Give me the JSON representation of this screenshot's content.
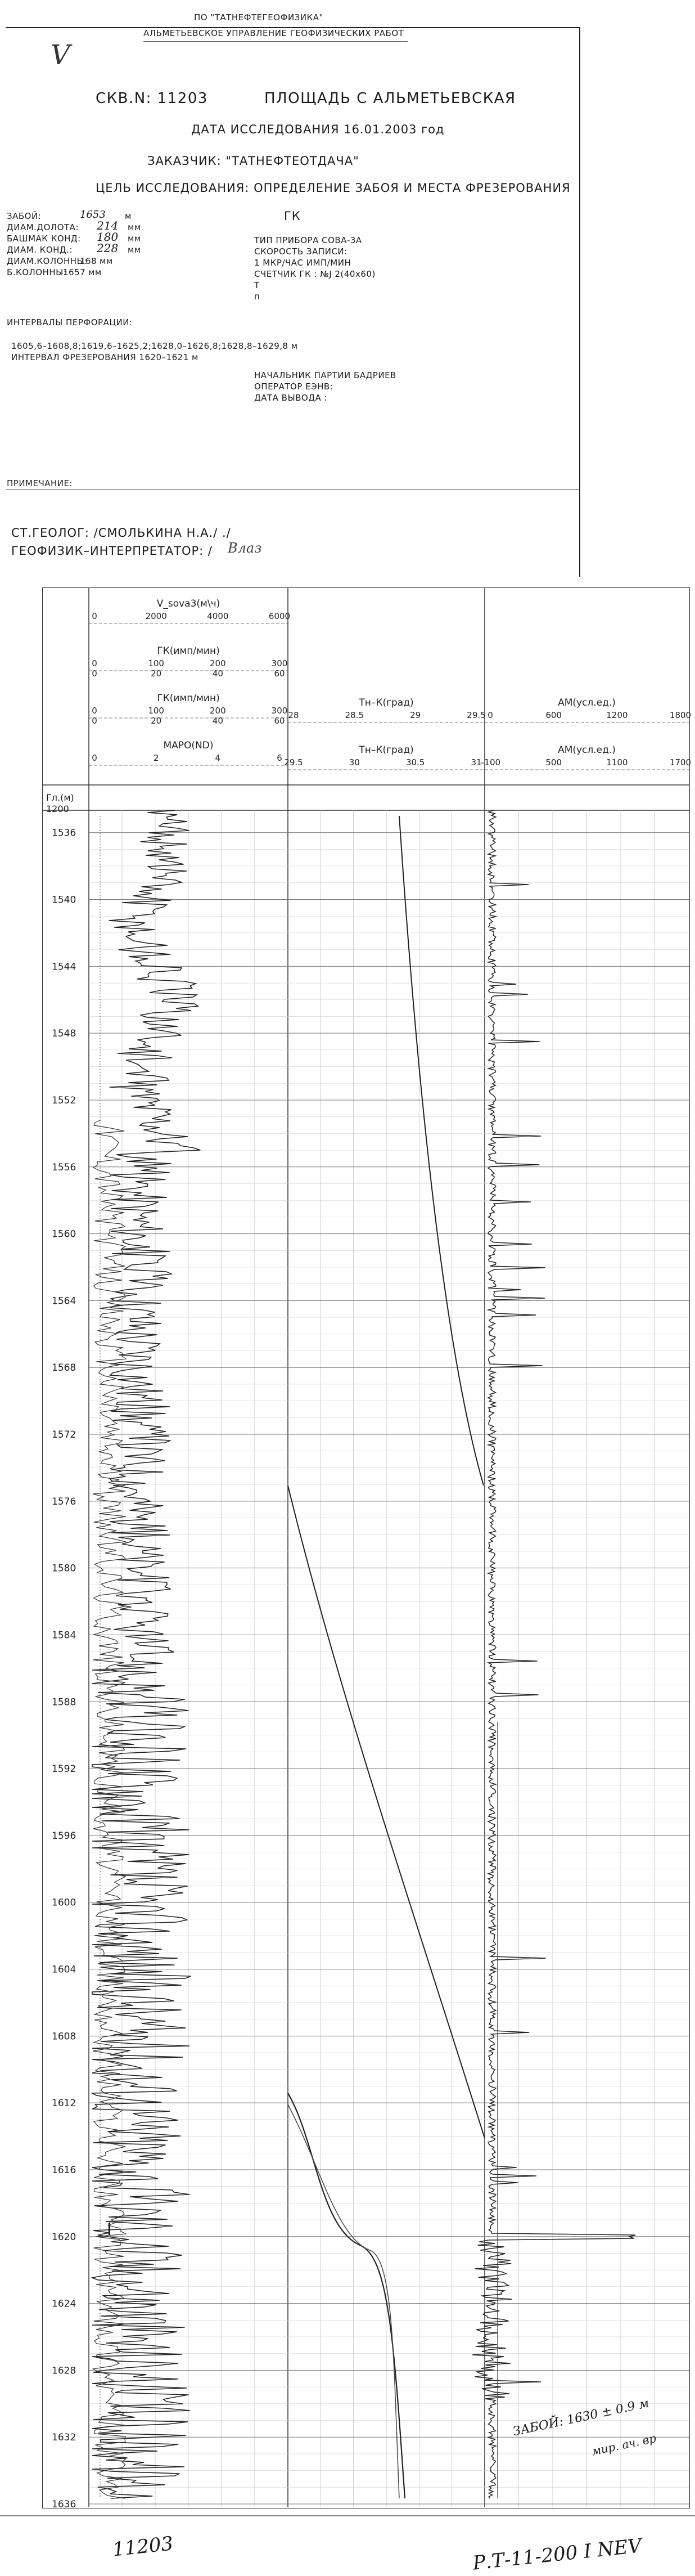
{
  "header": {
    "org_line1": "ПО   \"ТАТНЕФТЕГЕОФИЗИКА\"",
    "org_line2": "АЛЬМЕТЬЕВСКОЕ УПРАВЛЕНИЕ ГЕОФИЗИЧЕСКИХ РАБОТ",
    "well_no": "СКВ.N: 11203",
    "area": "ПЛОЩАДЬ С АЛЬМЕТЬЕВСКАЯ",
    "survey_date": "ДАТА ИССЛЕДОВАНИЯ 16.01.2003 год",
    "customer": "ЗАКАЗЧИК: \"ТАТНЕФТЕОТДАЧА\"",
    "purpose": "ЦЕЛЬ ИССЛЕДОВАНИЯ: ОПРЕДЕЛЕНИЕ ЗАБОЯ И МЕСТА ФРЕЗЕРОВАНИЯ",
    "left_params": [
      {
        "label": "ЗАБОЙ:",
        "value": "1653",
        "unit": "м"
      },
      {
        "label": "ДИАМ.ДОЛОТА:",
        "value": "214",
        "unit": "мм"
      },
      {
        "label": "БАШМАК КОНД:",
        "value": "180",
        "unit": "мм"
      },
      {
        "label": "ДИАМ. КОНД.:",
        "value": "228",
        "unit": "мм"
      },
      {
        "label": "ДИАМ.КОЛОННЫ:",
        "value": "168",
        "unit": "мм"
      },
      {
        "label": "Б.КОЛОННЫ:",
        "value": "1657",
        "unit": "мм"
      }
    ],
    "gk_label": "ГК",
    "right_params": [
      "ТИП ПРИБОРА СОВА-3А",
      "СКОРОСТЬ ЗАПИСИ:",
      "1 МКР/ЧАС          ИМП/МИН",
      "СЧЕТЧИК ГК     :  №J 2(40х60)",
      "Т",
      "п"
    ],
    "perf_title": "ИНТЕРВАЛЫ ПЕРФОРАЦИИ:",
    "perf_line1": "1605,6–1608,8;1619,6–1625,2;1628,0–1626,8;1628,8–1629,8 м",
    "perf_line2": "ИНТЕРВАЛ ФРЕЗЕРОВАНИЯ 1620–1621 м",
    "party_chief": "НАЧАЛЬНИК ПАРТИИ БАДРИЕВ",
    "operator": "ОПЕРАТОР ЕЭНВ:",
    "output_date": "ДАТА ВЫВОДА  :",
    "note_label": "ПРИМЕЧАНИЕ:",
    "geologist": "СТ.ГЕОЛОГ:                  /СМОЛЬКИНА Н.А./                    ./",
    "interpreter": "ГЕОФИЗИК–ИНТЕРПРЕТАТОР: /",
    "interpreter_sig": "Влаз",
    "handwritten_tick": "V"
  },
  "log": {
    "depth_header": "Гл.(м)",
    "depth_start": "1200",
    "depth_ticks": [
      "1536",
      "1540",
      "1544",
      "1548",
      "1552",
      "1556",
      "1560",
      "1564",
      "1568",
      "1572",
      "1576",
      "1580",
      "1584",
      "1588",
      "1592",
      "1596",
      "1600",
      "1604",
      "1608",
      "1612",
      "1616",
      "1620",
      "1624",
      "1628",
      "1632",
      "1636"
    ],
    "track1_headers": [
      {
        "name": "V_sova3(м\\ч)",
        "ticks": [
          "0",
          "2000",
          "4000",
          "6000"
        ]
      },
      {
        "name": "ГК(имп/мин)",
        "ticks": [
          "0",
          "100",
          "200",
          "300"
        ],
        "ticks2": [
          "0",
          "20",
          "40",
          "60"
        ]
      },
      {
        "name": "ГК(имп/мин)",
        "ticks": [
          "0",
          "100",
          "200",
          "300"
        ],
        "ticks2": [
          "0",
          "20",
          "40",
          "60"
        ]
      },
      {
        "name": "МАРО(ND)",
        "ticks": [
          "0",
          "2",
          "4",
          "6"
        ]
      }
    ],
    "track2_headers": [
      {
        "name": "Тн–К(град)",
        "ticks": [
          "28",
          "28.5",
          "29",
          "29.5"
        ]
      },
      {
        "name": "Тн–К(град)",
        "ticks": [
          "29.5",
          "30",
          "30.5",
          "31"
        ]
      }
    ],
    "track3_headers": [
      {
        "name": "АМ(усл.ед.)",
        "ticks": [
          "0",
          "600",
          "1200",
          "1800"
        ]
      },
      {
        "name": "АМ(усл.ед.)",
        "ticks": [
          "–100",
          "500",
          "1100",
          "1700"
        ]
      }
    ],
    "annotation_bottom": "ЗАБОЙ: 1630 ± 0.9 м",
    "annotation_bottom2": "мир. ач. вр",
    "i_marker": "I"
  },
  "footer": {
    "left_note": "11203",
    "right_note": "Р.Т-11-200 I NEV"
  }
}
